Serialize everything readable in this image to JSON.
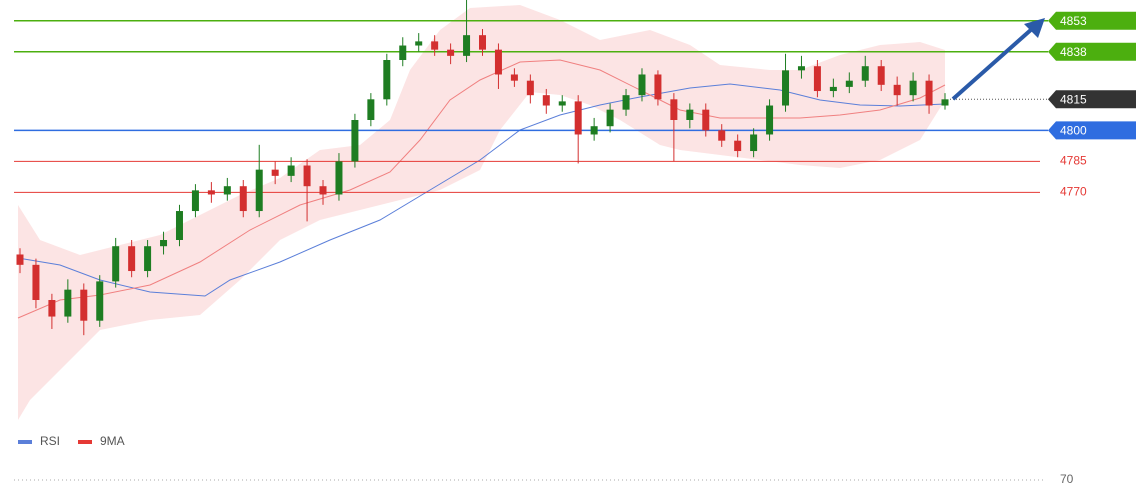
{
  "chart_data": {
    "type": "candlestick",
    "ylim": [
      4660,
      4863
    ],
    "up_color": "#1e7d22",
    "down_color": "#d32f2f",
    "open": [
      4740,
      4735,
      4718,
      4710,
      4723,
      4708,
      4727,
      4744,
      4732,
      4744,
      4747,
      4761,
      4771,
      4769,
      4773,
      4761,
      4781,
      4778,
      4783,
      4773,
      4769,
      4785,
      4805,
      4815,
      4834,
      4841,
      4843,
      4839,
      4836,
      4846,
      4839,
      4827,
      4824,
      4817,
      4812,
      4814,
      4798,
      4802,
      4810,
      4817,
      4827,
      4815,
      4805,
      4810,
      4800,
      4795,
      4790,
      4798,
      4812,
      4829,
      4831,
      4819,
      4821,
      4824,
      4831,
      4822,
      4817,
      4824,
      4812
    ],
    "high": [
      4743,
      4738,
      4721,
      4728,
      4726,
      4730,
      4748,
      4747,
      4747,
      4751,
      4764,
      4774,
      4775,
      4777,
      4776,
      4793,
      4785,
      4787,
      4786,
      4776,
      4789,
      4808,
      4818,
      4837,
      4845,
      4847,
      4846,
      4842,
      4863,
      4849,
      4842,
      4830,
      4827,
      4820,
      4817,
      4817,
      4806,
      4813,
      4820,
      4830,
      4829,
      4818,
      4813,
      4813,
      4803,
      4798,
      4801,
      4815,
      4837,
      4836,
      4834,
      4825,
      4828,
      4836,
      4834,
      4826,
      4828,
      4827,
      4818
    ],
    "low": [
      4731,
      4714,
      4704,
      4707,
      4701,
      4705,
      4724,
      4729,
      4729,
      4740,
      4744,
      4758,
      4765,
      4766,
      4758,
      4758,
      4774,
      4775,
      4756,
      4764,
      4766,
      4782,
      4802,
      4812,
      4831,
      4838,
      4836,
      4832,
      4833,
      4836,
      4820,
      4821,
      4813,
      4808,
      4809,
      4784,
      4795,
      4799,
      4807,
      4814,
      4812,
      4785,
      4801,
      4797,
      4792,
      4787,
      4787,
      4795,
      4809,
      4825,
      4816,
      4816,
      4818,
      4821,
      4819,
      4812,
      4814,
      4808,
      4810
    ],
    "close": [
      4735,
      4718,
      4710,
      4723,
      4708,
      4727,
      4744,
      4732,
      4744,
      4747,
      4761,
      4771,
      4769,
      4773,
      4761,
      4781,
      4778,
      4783,
      4773,
      4769,
      4785,
      4805,
      4815,
      4834,
      4841,
      4843,
      4839,
      4836,
      4846,
      4839,
      4827,
      4824,
      4817,
      4812,
      4814,
      4798,
      4802,
      4810,
      4817,
      4827,
      4815,
      4805,
      4810,
      4800,
      4795,
      4790,
      4798,
      4812,
      4829,
      4831,
      4819,
      4821,
      4824,
      4831,
      4822,
      4817,
      4824,
      4812,
      4815
    ],
    "levels": [
      {
        "value": 4853,
        "color": "#4caf0f",
        "style": "box"
      },
      {
        "value": 4838,
        "color": "#4caf0f",
        "style": "box"
      },
      {
        "value": 4815,
        "color": "#333333",
        "style": "current"
      },
      {
        "value": 4800,
        "color": "#2f6de0",
        "style": "box"
      },
      {
        "value": 4785,
        "color": "#e53935",
        "style": "text"
      },
      {
        "value": 4770,
        "color": "#e53935",
        "style": "text"
      }
    ],
    "indicator": {
      "series": [
        {
          "name": "RSI",
          "color": "#5b7fd9"
        },
        {
          "name": "9MA",
          "color": "#e53935"
        }
      ],
      "yticks": [
        70
      ]
    }
  }
}
